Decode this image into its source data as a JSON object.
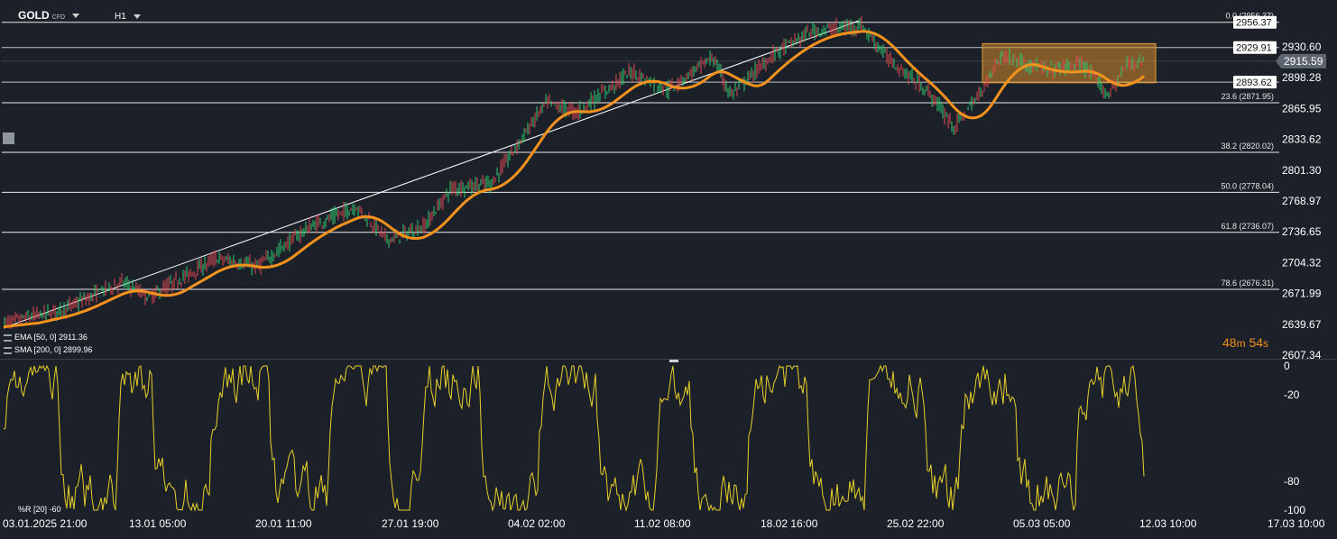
{
  "header": {
    "symbol": "GOLD",
    "symbol_type": "CFD",
    "timeframe": "H1"
  },
  "price_axis": {
    "labels": [
      "2930.60",
      "2898.28",
      "2865.95",
      "2833.62",
      "2801.30",
      "2768.97",
      "2736.65",
      "2704.32",
      "2671.99",
      "2639.67",
      "2607.34"
    ],
    "min": 2607.34,
    "max": 2930.6
  },
  "price_tags": {
    "top_line": "2956.37",
    "resistance": "2929.91",
    "current": "2915.59",
    "support": "2893.62"
  },
  "fibonacci": [
    {
      "label": "0.0 (2956.37)",
      "price": 2956.37
    },
    {
      "label": "23.6 (2871.95)",
      "price": 2871.95
    },
    {
      "label": "38.2 (2820.02)",
      "price": 2820.02
    },
    {
      "label": "50.0 (2778.04)",
      "price": 2778.04
    },
    {
      "label": "61.8 (2736.07)",
      "price": 2736.07
    },
    {
      "label": "78.6 (2676.31)",
      "price": 2676.31
    }
  ],
  "indicators": {
    "ema": "EMA [50, 0] 2911.36",
    "sma": "SMA [200, 0] 2899.96",
    "williams": "%R [20] -60"
  },
  "oscillator_axis": {
    "labels": [
      "0",
      "-20",
      "-80",
      "-100"
    ],
    "values": [
      0,
      -20,
      -80,
      -100
    ]
  },
  "countdown": {
    "minutes": "48",
    "m": "m",
    "seconds": "54",
    "s": "s"
  },
  "time_axis": [
    "03.01.2025  21:00",
    "13.01  05:00",
    "20.01  11:00",
    "27.01  19:00",
    "04.02  02:00",
    "11.02  08:00",
    "18.02  16:00",
    "25.02  22:00",
    "05.03  05:00",
    "12.03  10:00",
    "17.03  10:00"
  ],
  "colors": {
    "background": "#1c2129",
    "ema": "#f5921e",
    "sma": "#1e9be0",
    "up_candle": "#2ecc71",
    "down_candle": "#e0484f",
    "oscillator": "#e6cf2a",
    "range_box": "#d68a2a"
  }
}
